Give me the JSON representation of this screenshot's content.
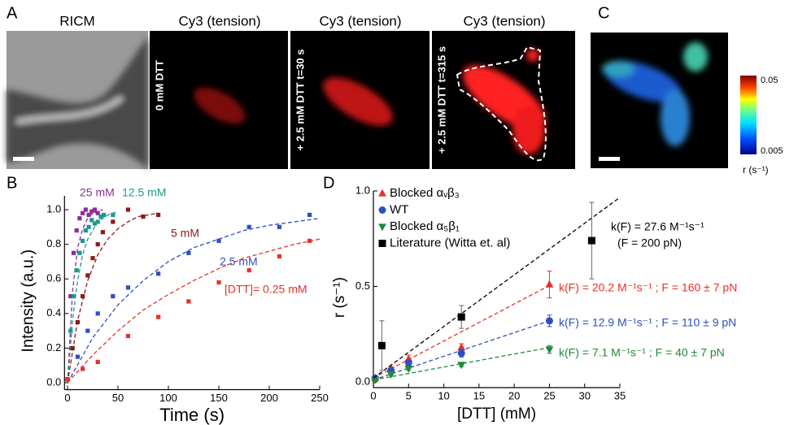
{
  "panels": {
    "a_label": "A",
    "b_label": "B",
    "c_label": "C",
    "d_label": "D",
    "ricm_title": "RICM",
    "cy3_titles": [
      "Cy3 (tension)",
      "Cy3 (tension)",
      "Cy3 (tension)"
    ],
    "conditions": [
      "0 mM DTT",
      "+ 2.5 mM DTT  t=30 s",
      "+ 2.5 mM DTT  t=315 s"
    ],
    "colorbar_max": "0.05",
    "colorbar_min": "0.005",
    "colorbar_label": "r (s⁻¹)"
  },
  "chart_data": [
    {
      "type": "scatter",
      "xlabel": "Time (s)",
      "ylabel": "Intensity (a.u.)",
      "xlim": [
        -3,
        250
      ],
      "xticks": [
        0,
        50,
        100,
        150,
        200,
        250
      ],
      "ylim": [
        -0.04,
        1.08
      ],
      "yticks": [
        {
          "value": 0,
          "label": "0.0"
        },
        0.2,
        0.4,
        0.6,
        0.8,
        {
          "value": 1,
          "label": "1.0"
        }
      ],
      "legend": false,
      "series": [
        {
          "name": "25 mM",
          "color": "#8e2c9c",
          "marker": "square",
          "x": [
            0,
            3,
            6,
            9,
            12,
            15,
            18,
            21,
            24,
            27,
            30
          ],
          "values": [
            0.02,
            0.5,
            0.75,
            0.88,
            0.95,
            0.98,
            1.0,
            0.97,
            0.99,
            1.0,
            0.98
          ],
          "fit": {
            "x": [
              0,
              5,
              10,
              15,
              20,
              25,
              30,
              35
            ],
            "y": [
              0,
              0.53,
              0.78,
              0.89,
              0.95,
              0.98,
              0.99,
              1.0
            ]
          }
        },
        {
          "name": "12.5 mM",
          "color": "#1b9a8a",
          "marker": "square",
          "x": [
            0,
            3,
            6,
            9,
            12,
            15,
            18,
            21,
            24,
            27,
            30,
            33,
            36,
            45
          ],
          "values": [
            0.02,
            0.3,
            0.5,
            0.65,
            0.75,
            0.82,
            0.88,
            0.9,
            0.94,
            0.92,
            0.93,
            0.96,
            0.97,
            0.97
          ],
          "fit": {
            "x": [
              0,
              5,
              10,
              15,
              20,
              30,
              40,
              50
            ],
            "y": [
              0,
              0.36,
              0.59,
              0.74,
              0.83,
              0.93,
              0.97,
              0.99
            ]
          }
        },
        {
          "name": "5 mM",
          "color": "#8b1a1a",
          "marker": "square",
          "x": [
            0,
            5,
            10,
            15,
            20,
            25,
            30,
            35,
            45,
            60,
            75,
            90
          ],
          "values": [
            0.02,
            0.2,
            0.35,
            0.5,
            0.62,
            0.72,
            0.8,
            0.87,
            0.93,
            1.0,
            0.96,
            0.97
          ],
          "fit": {
            "x": [
              0,
              10,
              20,
              30,
              40,
              50,
              60,
              70,
              80,
              90
            ],
            "y": [
              0,
              0.36,
              0.59,
              0.74,
              0.83,
              0.89,
              0.93,
              0.96,
              0.97,
              0.98
            ]
          }
        },
        {
          "name": "2.5 mM",
          "color": "#2e4fbf",
          "marker": "square",
          "x": [
            0,
            10,
            20,
            30,
            45,
            60,
            90,
            120,
            150,
            180,
            210,
            240
          ],
          "values": [
            0.02,
            0.15,
            0.3,
            0.4,
            0.5,
            0.55,
            0.63,
            0.75,
            0.82,
            0.9,
            0.9,
            0.97
          ],
          "fit": {
            "x": [
              0,
              25,
              50,
              75,
              100,
              125,
              150,
              175,
              200,
              225,
              250
            ],
            "y": [
              0,
              0.26,
              0.45,
              0.59,
              0.7,
              0.78,
              0.83,
              0.88,
              0.91,
              0.93,
              0.95
            ]
          }
        },
        {
          "name": "[DTT]= 0.25 mM",
          "color": "#e8302a",
          "marker": "square",
          "x": [
            0,
            15,
            30,
            60,
            90,
            120,
            150,
            180,
            210,
            240
          ],
          "values": [
            0.02,
            0.08,
            0.12,
            0.27,
            0.38,
            0.47,
            0.58,
            0.65,
            0.73,
            0.82
          ],
          "fit": {
            "x": [
              0,
              25,
              50,
              75,
              100,
              125,
              150,
              175,
              200,
              225,
              250
            ],
            "y": [
              0,
              0.16,
              0.3,
              0.42,
              0.51,
              0.59,
              0.66,
              0.72,
              0.76,
              0.8,
              0.83
            ]
          }
        }
      ]
    },
    {
      "type": "scatter",
      "xlabel": "[DTT] (mM)",
      "ylabel": "r (s⁻¹)",
      "xlim": [
        0,
        35
      ],
      "xticks": [
        0,
        5,
        10,
        15,
        20,
        25,
        30,
        35
      ],
      "ylim": [
        -0.03,
        1.0
      ],
      "yticks": [
        {
          "value": 0,
          "label": "0.0"
        },
        0.5,
        {
          "value": 1,
          "label": "1.0"
        }
      ],
      "legend": "upper left",
      "series": [
        {
          "name": "Blocked αᵥβ₃",
          "color": "#e8302a",
          "marker": "triangle",
          "x": [
            0.25,
            2.5,
            5,
            12.5,
            25
          ],
          "values": [
            0.02,
            0.07,
            0.12,
            0.18,
            0.51
          ],
          "errors": [
            0.01,
            0.01,
            0.02,
            0.02,
            0.07
          ],
          "fit": {
            "x": [
              0,
              25
            ],
            "y": [
              0.02,
              0.505
            ]
          },
          "annotation": "k(F) = 20.2 M⁻¹s⁻¹ ; F = 160 ± 7 pN"
        },
        {
          "name": "WT",
          "color": "#2e4fbf",
          "marker": "circle",
          "x": [
            0.25,
            2.5,
            5,
            12.5,
            25
          ],
          "values": [
            0.02,
            0.06,
            0.1,
            0.15,
            0.32
          ],
          "errors": [
            0.01,
            0.01,
            0.01,
            0.02,
            0.03
          ],
          "fit": {
            "x": [
              0,
              25
            ],
            "y": [
              0.01,
              0.32
            ]
          },
          "annotation": "k(F) = 12.9 M⁻¹s⁻¹ ; F = 110 ± 9 pN"
        },
        {
          "name": "Blocked α₅β₁",
          "color": "#1e8a3a",
          "marker": "triangle-down",
          "x": [
            0.25,
            2.5,
            5,
            12.5,
            25
          ],
          "values": [
            0.01,
            0.04,
            0.07,
            0.09,
            0.17
          ],
          "errors": [
            0.005,
            0.005,
            0.01,
            0.01,
            0.02
          ],
          "fit": {
            "x": [
              0,
              25
            ],
            "y": [
              0.01,
              0.18
            ]
          },
          "annotation": "k(F) =  7.1 M⁻¹s⁻¹ ; F =   40 ± 7 pN"
        },
        {
          "name": "Literature (Witta et. al)",
          "color": "#000000",
          "marker": "square",
          "x": [
            1.2,
            12.5,
            31
          ],
          "values": [
            0.19,
            0.34,
            0.74
          ],
          "errors": [
            0.13,
            0.06,
            0.2
          ],
          "fit": {
            "x": [
              0,
              35
            ],
            "y": [
              0.02,
              0.966
            ]
          },
          "annotation": "k(F) = 27.6 M⁻¹s⁻¹",
          "annotation2": "(F = 200 pN)"
        }
      ]
    }
  ]
}
